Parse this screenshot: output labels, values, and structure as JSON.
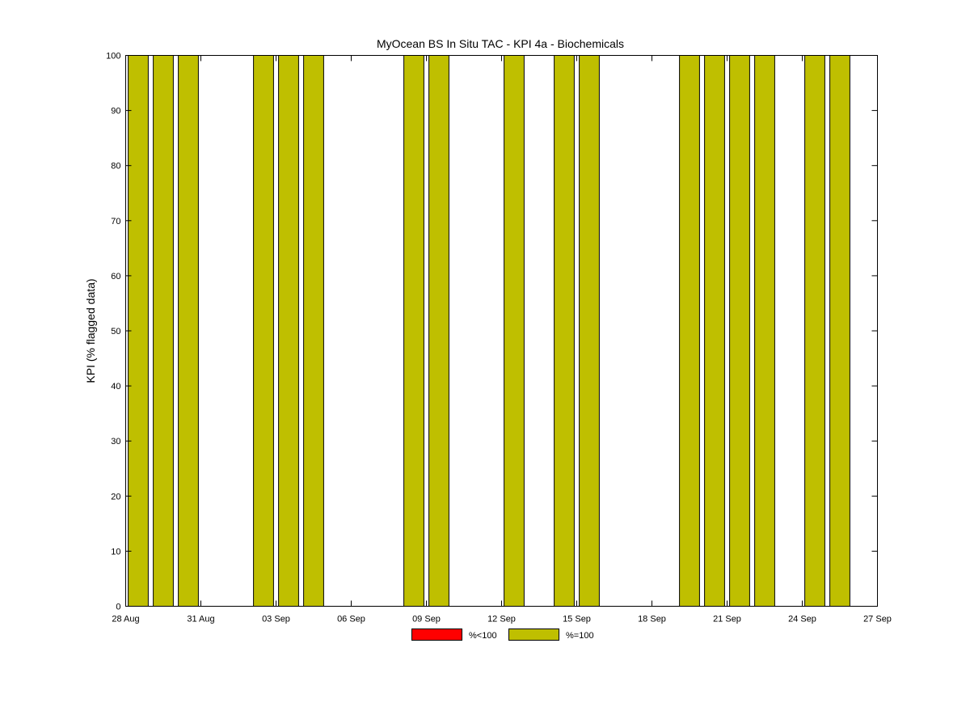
{
  "chart_data": {
    "type": "bar",
    "title": "MyOcean  BS In Situ TAC - KPI 4a - Biochemicals",
    "xlabel": "",
    "ylabel": "KPI (% flagged data)",
    "ylim": [
      0,
      100
    ],
    "yticks": [
      0,
      10,
      20,
      30,
      40,
      50,
      60,
      70,
      80,
      90,
      100
    ],
    "x_start": "2012-08-28",
    "x_end": "2012-09-27",
    "xticks": [
      {
        "date": "2012-08-28",
        "label": "28 Aug"
      },
      {
        "date": "2012-08-31",
        "label": "31 Aug"
      },
      {
        "date": "2012-09-03",
        "label": "03 Sep"
      },
      {
        "date": "2012-09-06",
        "label": "06 Sep"
      },
      {
        "date": "2012-09-09",
        "label": "09 Sep"
      },
      {
        "date": "2012-09-12",
        "label": "12 Sep"
      },
      {
        "date": "2012-09-15",
        "label": "15 Sep"
      },
      {
        "date": "2012-09-18",
        "label": "18 Sep"
      },
      {
        "date": "2012-09-21",
        "label": "21 Sep"
      },
      {
        "date": "2012-09-24",
        "label": "24 Sep"
      },
      {
        "date": "2012-09-27",
        "label": "27 Sep"
      }
    ],
    "series": [
      {
        "name": "%<100",
        "color": "#ff0000",
        "points": []
      },
      {
        "name": "%=100",
        "color": "#bfbf00",
        "points": [
          {
            "date": "2012-08-29",
            "value": 100
          },
          {
            "date": "2012-08-30",
            "value": 100
          },
          {
            "date": "2012-08-31",
            "value": 100
          },
          {
            "date": "2012-09-03",
            "value": 100
          },
          {
            "date": "2012-09-04",
            "value": 100
          },
          {
            "date": "2012-09-05",
            "value": 100
          },
          {
            "date": "2012-09-09",
            "value": 100
          },
          {
            "date": "2012-09-10",
            "value": 100
          },
          {
            "date": "2012-09-13",
            "value": 100
          },
          {
            "date": "2012-09-15",
            "value": 100
          },
          {
            "date": "2012-09-16",
            "value": 100
          },
          {
            "date": "2012-09-20",
            "value": 100
          },
          {
            "date": "2012-09-21",
            "value": 100
          },
          {
            "date": "2012-09-22",
            "value": 100
          },
          {
            "date": "2012-09-23",
            "value": 100
          },
          {
            "date": "2012-09-25",
            "value": 100
          },
          {
            "date": "2012-09-26",
            "value": 100
          }
        ]
      }
    ],
    "grid": false,
    "legend_position": "bottom-center"
  }
}
